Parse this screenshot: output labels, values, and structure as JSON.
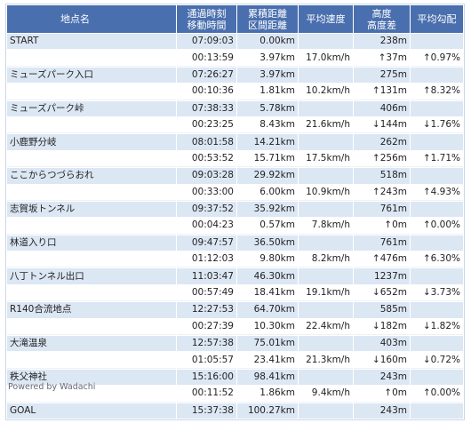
{
  "table": {
    "columns": [
      {
        "lines": [
          "地点名"
        ]
      },
      {
        "lines": [
          "通過時刻",
          "移動時間"
        ]
      },
      {
        "lines": [
          "累積距離",
          "区間距離"
        ]
      },
      {
        "lines": [
          "平均速度"
        ]
      },
      {
        "lines": [
          "高度",
          "高度差"
        ]
      },
      {
        "lines": [
          "平均勾配"
        ]
      }
    ],
    "rows": [
      {
        "name": "START",
        "time": "07:09:03",
        "distance": "0.00km",
        "altitude": "238m"
      },
      {
        "duration": "00:13:59",
        "distance": "3.97km",
        "speed": "17.0km/h",
        "altitude_diff": "↑37m",
        "gradient": "↑0.97%"
      },
      {
        "name": "ミューズパーク入口",
        "time": "07:26:27",
        "distance": "3.97km",
        "altitude": "275m"
      },
      {
        "duration": "00:10:36",
        "distance": "1.81km",
        "speed": "10.2km/h",
        "altitude_diff": "↑131m",
        "gradient": "↑8.32%"
      },
      {
        "name": "ミューズパーク峠",
        "time": "07:38:33",
        "distance": "5.78km",
        "altitude": "406m"
      },
      {
        "duration": "00:23:25",
        "distance": "8.43km",
        "speed": "21.6km/h",
        "altitude_diff": "↓144m",
        "gradient": "↓1.76%"
      },
      {
        "name": "小鹿野分岐",
        "time": "08:01:58",
        "distance": "14.21km",
        "altitude": "262m"
      },
      {
        "duration": "00:53:52",
        "distance": "15.71km",
        "speed": "17.5km/h",
        "altitude_diff": "↑256m",
        "gradient": "↑1.71%"
      },
      {
        "name": "ここからつづらおれ",
        "time": "09:03:28",
        "distance": "29.92km",
        "altitude": "518m"
      },
      {
        "duration": "00:33:00",
        "distance": "6.00km",
        "speed": "10.9km/h",
        "altitude_diff": "↑243m",
        "gradient": "↑4.93%"
      },
      {
        "name": "志賀坂トンネル",
        "time": "09:37:52",
        "distance": "35.92km",
        "altitude": "761m"
      },
      {
        "duration": "00:04:23",
        "distance": "0.57km",
        "speed": "7.8km/h",
        "altitude_diff": "↑0m",
        "gradient": "↑0.00%"
      },
      {
        "name": "林道入り口",
        "time": "09:47:57",
        "distance": "36.50km",
        "altitude": "761m"
      },
      {
        "duration": "01:12:03",
        "distance": "9.80km",
        "speed": "8.2km/h",
        "altitude_diff": "↑476m",
        "gradient": "↑6.30%"
      },
      {
        "name": "八丁トンネル出口",
        "time": "11:03:47",
        "distance": "46.30km",
        "altitude": "1237m"
      },
      {
        "duration": "00:57:49",
        "distance": "18.41km",
        "speed": "19.1km/h",
        "altitude_diff": "↓652m",
        "gradient": "↓3.73%"
      },
      {
        "name": "R140合流地点",
        "time": "12:27:53",
        "distance": "64.70km",
        "altitude": "585m"
      },
      {
        "duration": "00:27:39",
        "distance": "10.30km",
        "speed": "22.4km/h",
        "altitude_diff": "↓182m",
        "gradient": "↓1.82%"
      },
      {
        "name": "大滝温泉",
        "time": "12:57:38",
        "distance": "75.01km",
        "altitude": "403m"
      },
      {
        "duration": "01:05:57",
        "distance": "23.41km",
        "speed": "21.3km/h",
        "altitude_diff": "↓160m",
        "gradient": "↓0.72%"
      },
      {
        "name": "秩父神社",
        "time": "15:16:00",
        "distance": "98.41km",
        "altitude": "243m"
      },
      {
        "duration": "00:11:52",
        "distance": "1.86km",
        "speed": "9.4km/h",
        "altitude_diff": "↑0m",
        "gradient": "↑0.00%"
      },
      {
        "name": "GOAL",
        "time": "15:37:38",
        "distance": "100.27km",
        "altitude": "243m"
      }
    ]
  },
  "footer": {
    "text": "Powered by Wadachi"
  }
}
